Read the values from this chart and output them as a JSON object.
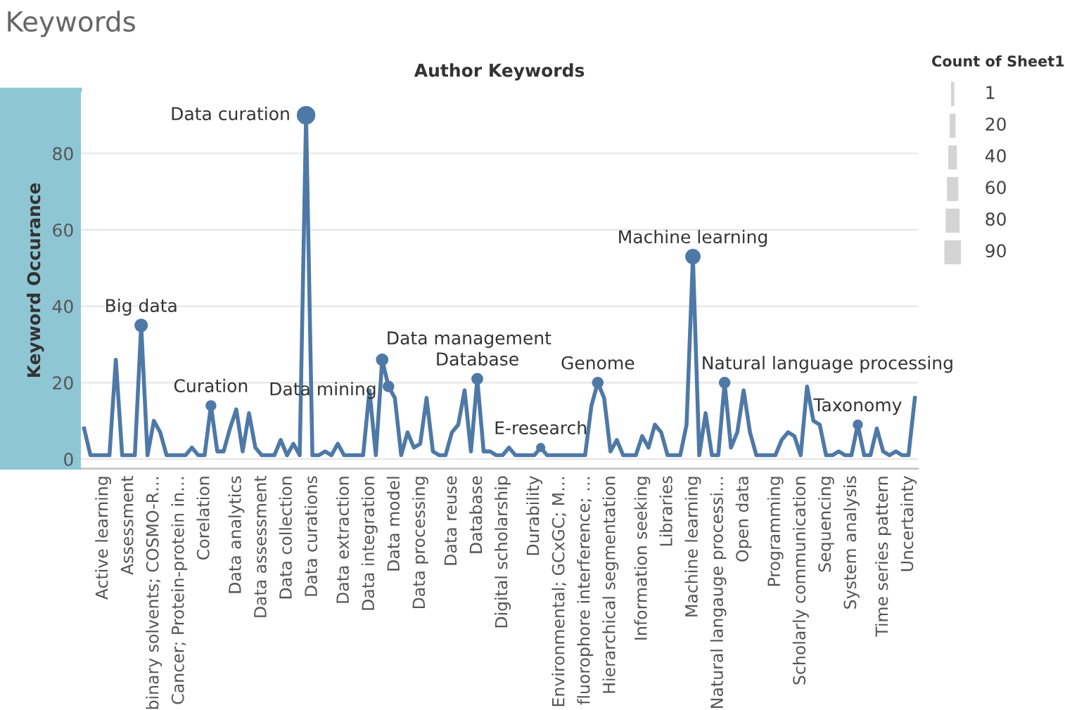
{
  "chart_data": [
    {
      "type": "line",
      "title": "Keywords",
      "xlabel": "Author Keywords",
      "ylabel": "Keyword Occurance",
      "grid": "y",
      "ylim": [
        -2.5,
        96
      ],
      "yticks": [
        0,
        20,
        40,
        60,
        80
      ],
      "categories": [
        null,
        null,
        null,
        "Active learning",
        null,
        null,
        null,
        "Assessment",
        null,
        null,
        null,
        "binary solvents; COSMO-R…",
        null,
        null,
        null,
        "Cancer; Protein-protein in…",
        null,
        null,
        null,
        "Corelation",
        null,
        null,
        null,
        null,
        "Data analytics",
        null,
        null,
        null,
        "Data assessment",
        null,
        null,
        null,
        "Data collection",
        null,
        null,
        null,
        "Data curations",
        null,
        null,
        null,
        null,
        "Data extraction",
        null,
        null,
        null,
        "Data integration",
        null,
        null,
        null,
        "Data model",
        null,
        null,
        null,
        "Data processing",
        null,
        null,
        null,
        null,
        "Data reuse",
        null,
        null,
        null,
        "Database",
        null,
        null,
        null,
        "Digital scholarship",
        null,
        null,
        null,
        null,
        "Durability",
        null,
        null,
        null,
        "Environmental; GCxGC; M…",
        null,
        null,
        null,
        "fluorophore interference; …",
        null,
        null,
        null,
        "Hierarchical segmentation",
        null,
        null,
        null,
        null,
        "Information seeking",
        null,
        null,
        null,
        "Libraries",
        null,
        null,
        null,
        "Machine learning",
        null,
        null,
        null,
        "Natural langauge processi…",
        null,
        null,
        null,
        "Open data",
        null,
        null,
        null,
        null,
        "Programming",
        null,
        null,
        null,
        "Scholarly communication",
        null,
        null,
        null,
        "Sequencing",
        null,
        null,
        null,
        "System analysis",
        null,
        null,
        null,
        null,
        "Time series pattern",
        null,
        null,
        null,
        "Uncertainty",
        null
      ],
      "series": [
        {
          "color": "#4e79a7",
          "values": [
            8,
            1,
            1,
            1,
            1,
            26,
            1,
            1,
            1,
            35,
            1,
            10,
            7,
            1,
            1,
            1,
            1,
            3,
            1,
            1,
            14,
            2,
            2,
            8,
            13,
            2,
            12,
            3,
            1,
            1,
            1,
            5,
            1,
            4,
            1,
            90,
            1,
            1,
            2,
            1,
            4,
            1,
            1,
            1,
            1,
            18,
            1,
            26,
            19,
            16,
            1,
            7,
            3,
            4,
            16,
            2,
            1,
            1,
            7,
            9,
            18,
            2,
            21,
            2,
            2,
            1,
            1,
            3,
            1,
            1,
            1,
            1,
            3,
            1,
            1,
            1,
            1,
            1,
            1,
            1,
            14,
            20,
            16,
            2,
            5,
            1,
            1,
            1,
            6,
            3,
            9,
            7,
            1,
            1,
            1,
            9,
            53,
            1,
            12,
            1,
            1,
            20,
            3,
            7,
            18,
            7,
            1,
            1,
            1,
            1,
            5,
            7,
            6,
            1,
            19,
            10,
            9,
            1,
            1,
            2,
            1,
            1,
            9,
            1,
            1,
            8,
            2,
            1,
            2,
            1,
            1,
            16
          ],
          "value_labels": [
            null,
            null,
            null,
            null,
            null,
            null,
            null,
            null,
            null,
            "Big data",
            null,
            null,
            null,
            null,
            null,
            null,
            null,
            null,
            null,
            null,
            "Curation",
            null,
            null,
            null,
            null,
            null,
            null,
            null,
            null,
            null,
            null,
            null,
            null,
            null,
            null,
            "Data curation",
            null,
            null,
            null,
            null,
            null,
            null,
            null,
            null,
            null,
            null,
            null,
            "Data management",
            "Data mining",
            null,
            null,
            null,
            null,
            null,
            null,
            null,
            null,
            null,
            null,
            null,
            null,
            null,
            "Database",
            null,
            null,
            null,
            null,
            null,
            null,
            null,
            null,
            null,
            "E-research",
            null,
            null,
            null,
            null,
            null,
            null,
            null,
            null,
            "Genome",
            null,
            null,
            null,
            null,
            null,
            null,
            null,
            null,
            null,
            null,
            null,
            null,
            null,
            null,
            "Machine learning",
            null,
            null,
            null,
            null,
            "Natural language processing",
            null,
            null,
            null,
            null,
            null,
            null,
            null,
            null,
            null,
            null,
            null,
            null,
            null,
            null,
            null,
            null,
            null,
            null,
            null,
            null,
            "Taxonomy",
            null,
            null,
            null,
            null,
            null,
            null,
            null,
            null,
            null
          ]
        }
      ]
    },
    {
      "type": "other",
      "title": "Count of Sheet1",
      "annotations": [
        "1",
        "20",
        "40",
        "60",
        "80",
        "90"
      ]
    }
  ]
}
